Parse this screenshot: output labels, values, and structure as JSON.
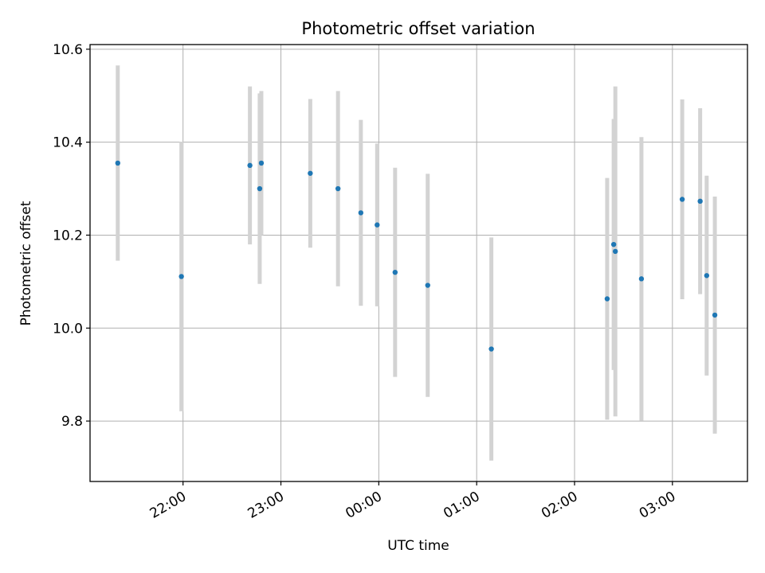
{
  "chart_data": {
    "type": "scatter",
    "title": "Photometric offset variation",
    "xlabel": "UTC time",
    "ylabel": "Photometric offset",
    "x_unit": "UTC time (HH:MM)",
    "xlim": [
      "21:03",
      "03:46"
    ],
    "ylim": [
      9.67,
      10.61
    ],
    "grid": true,
    "x_ticks": [
      "22:00",
      "23:00",
      "00:00",
      "01:00",
      "02:00",
      "03:00"
    ],
    "y_ticks": [
      "9.8",
      "10.0",
      "10.2",
      "10.4",
      "10.6"
    ],
    "marker_color": "#1f77b4",
    "errorbar_color": "#d3d3d3",
    "points": [
      {
        "time": "21:20",
        "y": 10.355,
        "err": 0.21
      },
      {
        "time": "21:59",
        "y": 10.111,
        "err": 0.29
      },
      {
        "time": "22:41",
        "y": 10.35,
        "err": 0.17
      },
      {
        "time": "22:47",
        "y": 10.3,
        "err": 0.205
      },
      {
        "time": "22:48",
        "y": 10.355,
        "err": 0.155
      },
      {
        "time": "23:18",
        "y": 10.333,
        "err": 0.16
      },
      {
        "time": "23:35",
        "y": 10.3,
        "err": 0.21
      },
      {
        "time": "23:49",
        "y": 10.248,
        "err": 0.2
      },
      {
        "time": "23:59",
        "y": 10.222,
        "err": 0.175
      },
      {
        "time": "00:10",
        "y": 10.12,
        "err": 0.225
      },
      {
        "time": "00:30",
        "y": 10.092,
        "err": 0.24
      },
      {
        "time": "01:09",
        "y": 9.955,
        "err": 0.24
      },
      {
        "time": "02:20",
        "y": 10.063,
        "err": 0.26
      },
      {
        "time": "02:24",
        "y": 10.18,
        "err": 0.27
      },
      {
        "time": "02:25",
        "y": 10.165,
        "err": 0.355
      },
      {
        "time": "02:41",
        "y": 10.106,
        "err": 0.305
      },
      {
        "time": "03:06",
        "y": 10.277,
        "err": 0.215
      },
      {
        "time": "03:17",
        "y": 10.273,
        "err": 0.2
      },
      {
        "time": "03:21",
        "y": 10.113,
        "err": 0.215
      },
      {
        "time": "03:26",
        "y": 10.028,
        "err": 0.255
      }
    ]
  }
}
